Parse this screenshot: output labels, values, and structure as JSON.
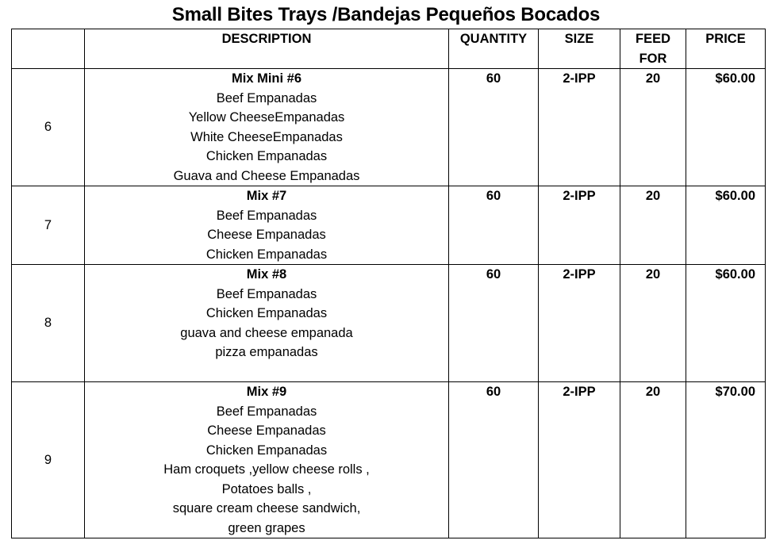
{
  "title": "Small Bites Trays /Bandejas Pequeños Bocados",
  "headers": {
    "number": "",
    "description": "DESCRIPTION",
    "quantity": "QUANTITY",
    "size": "SIZE",
    "feed_for_line1": "FEED",
    "feed_for_line2": "FOR",
    "price": "PRICE"
  },
  "rows": [
    {
      "number": "6",
      "name": "Mix Mini #6",
      "items": [
        "Beef Empanadas",
        "Yellow CheeseEmpanadas",
        "White  CheeseEmpanadas",
        "Chicken Empanadas",
        "Guava and Cheese Empanadas"
      ],
      "quantity": "60",
      "size": "2-IPP",
      "feed_for": "20",
      "price": "$60.00"
    },
    {
      "number": "7",
      "name": "Mix #7",
      "items": [
        "Beef Empanadas",
        "Cheese Empanadas",
        "Chicken Empanadas"
      ],
      "quantity": "60",
      "size": "2-IPP",
      "feed_for": "20",
      "price": "$60.00"
    },
    {
      "number": "8",
      "name": "Mix #8",
      "items": [
        "Beef Empanadas",
        "Chicken Empanadas",
        "guava and cheese empanada",
        "pizza empanadas"
      ],
      "quantity": "60",
      "size": "2-IPP",
      "feed_for": "20",
      "price": "$60.00"
    },
    {
      "number": "9",
      "name": "Mix #9",
      "items": [
        "Beef Empanadas",
        "Cheese Empanadas",
        "Chicken Empanadas",
        "Ham croquets ,yellow cheese rolls ,",
        "Potatoes balls ,",
        "square cream cheese sandwich,",
        "green grapes"
      ],
      "quantity": "60",
      "size": "2-IPP",
      "feed_for": "20",
      "price": "$70.00"
    }
  ]
}
